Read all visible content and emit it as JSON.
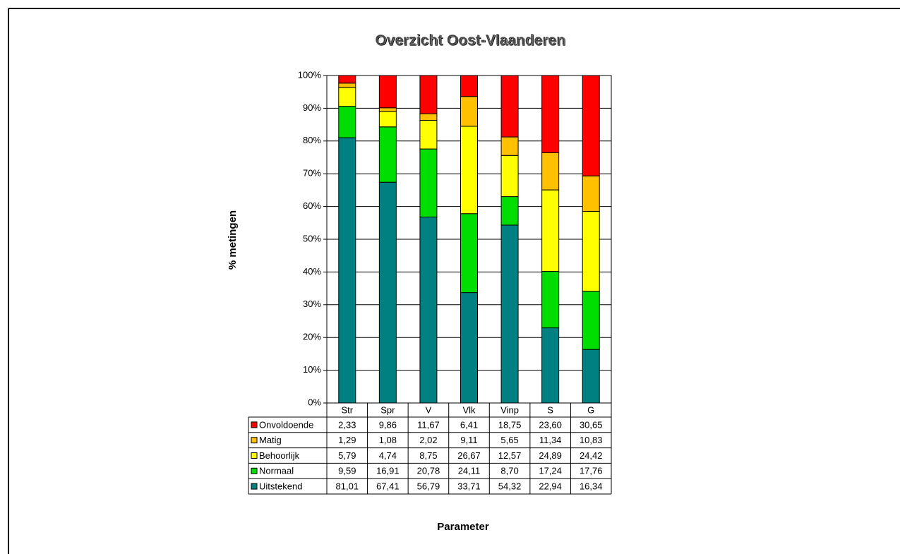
{
  "chart_data": {
    "type": "stacked_bar",
    "title": "Overzicht Oost-Vlaanderen",
    "y_label": "% metingen",
    "x_label": "Parameter",
    "categories": [
      "Str",
      "Spr",
      "V",
      "Vlk",
      "Vinp",
      "S",
      "G"
    ],
    "series": [
      {
        "name": "Uitstekend",
        "color": "#008080",
        "values": [
          81.01,
          67.41,
          56.79,
          33.71,
          54.32,
          22.94,
          16.34
        ],
        "value_labels": [
          "81,01",
          "67,41",
          "56,79",
          "33,71",
          "54,32",
          "22,94",
          "16,34"
        ]
      },
      {
        "name": "Normaal",
        "color": "#00dd00",
        "values": [
          9.59,
          16.91,
          20.78,
          24.11,
          8.7,
          17.24,
          17.76
        ],
        "value_labels": [
          "9,59",
          "16,91",
          "20,78",
          "24,11",
          "8,70",
          "17,24",
          "17,76"
        ]
      },
      {
        "name": "Behoorlijk",
        "color": "#ffff00",
        "values": [
          5.79,
          4.74,
          8.75,
          26.67,
          12.57,
          24.89,
          24.42
        ],
        "value_labels": [
          "5,79",
          "4,74",
          "8,75",
          "26,67",
          "12,57",
          "24,89",
          "24,42"
        ]
      },
      {
        "name": "Matig",
        "color": "#ffc000",
        "values": [
          1.29,
          1.08,
          2.02,
          9.11,
          5.65,
          11.34,
          10.83
        ],
        "value_labels": [
          "1,29",
          "1,08",
          "2,02",
          "9,11",
          "5,65",
          "11,34",
          "10,83"
        ]
      },
      {
        "name": "Onvoldoende",
        "color": "#ff0000",
        "values": [
          2.33,
          9.86,
          11.67,
          6.41,
          18.75,
          23.6,
          30.65
        ],
        "value_labels": [
          "2,33",
          "9,86",
          "11,67",
          "6,41",
          "18,75",
          "23,60",
          "30,65"
        ]
      }
    ],
    "ylim": [
      0,
      100
    ],
    "yticks": [
      {
        "value": 0,
        "label": "0%"
      },
      {
        "value": 10,
        "label": "10%"
      },
      {
        "value": 20,
        "label": "20%"
      },
      {
        "value": 30,
        "label": "30%"
      },
      {
        "value": 40,
        "label": "40%"
      },
      {
        "value": 50,
        "label": "50%"
      },
      {
        "value": 60,
        "label": "60%"
      },
      {
        "value": 70,
        "label": "70%"
      },
      {
        "value": 80,
        "label": "80%"
      },
      {
        "value": 90,
        "label": "90%"
      },
      {
        "value": 100,
        "label": "100%"
      }
    ]
  }
}
